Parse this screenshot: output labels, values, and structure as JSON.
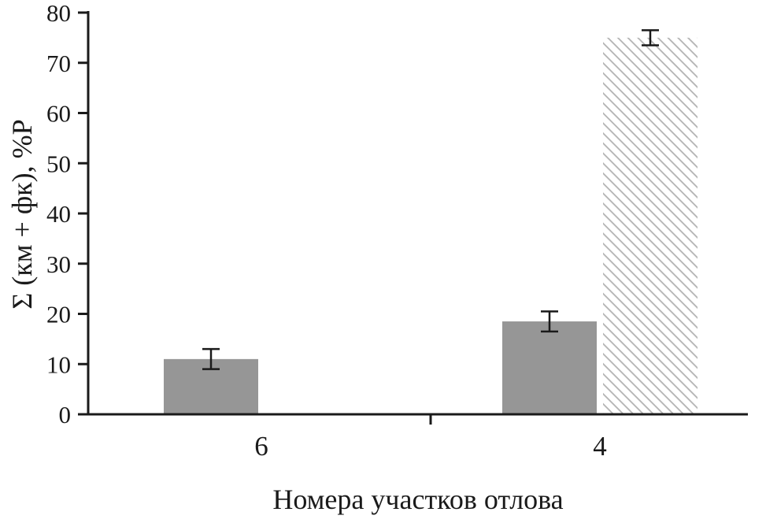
{
  "figure": {
    "background": "#ffffff",
    "text_color": "#1a1a1a"
  },
  "chart_data": {
    "type": "bar",
    "title": "",
    "xlabel": "Номера участков отлова",
    "ylabel": "Σ (км + фк), %Р",
    "categories": [
      "6",
      "4"
    ],
    "series": [
      {
        "name": "solid-gray-bars",
        "pattern": "solid",
        "color": "#969696",
        "values": [
          11,
          18.5
        ],
        "errors": [
          2,
          2
        ]
      },
      {
        "name": "diagonal-hatched-bars",
        "pattern": "diagonal-hatch",
        "color": "#b3b3b3",
        "values": [
          null,
          75
        ],
        "errors": [
          null,
          1.5
        ]
      }
    ],
    "ylim": [
      0,
      80
    ],
    "ytick_step": 10,
    "yticks": [
      0,
      10,
      20,
      30,
      40,
      50,
      60,
      70,
      80
    ],
    "grid": false,
    "legend": "none",
    "error_bars": true,
    "axis_color": "#1a1a1a"
  }
}
